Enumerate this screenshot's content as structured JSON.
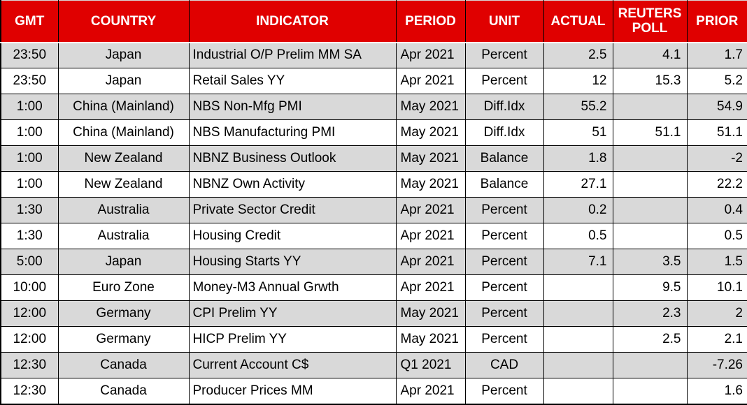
{
  "table": {
    "title": "economic-calendar",
    "colors": {
      "header_bg": "#E00000",
      "header_text": "#FFFFFF",
      "row_shaded": "#D9D9D9",
      "row_plain": "#FFFFFF",
      "border": "#000000"
    },
    "columns": [
      {
        "key": "gmt",
        "label": "GMT"
      },
      {
        "key": "country",
        "label": "COUNTRY"
      },
      {
        "key": "indicator",
        "label": "INDICATOR"
      },
      {
        "key": "period",
        "label": "PERIOD"
      },
      {
        "key": "unit",
        "label": "UNIT"
      },
      {
        "key": "actual",
        "label": "ACTUAL"
      },
      {
        "key": "reuters-poll",
        "label": "REUTERS POLL"
      },
      {
        "key": "prior",
        "label": "PRIOR"
      }
    ],
    "rows": [
      [
        "23:50",
        "Japan",
        "Industrial O/P Prelim MM SA",
        "Apr 2021",
        "Percent",
        "2.5",
        "4.1",
        "1.7"
      ],
      [
        "23:50",
        "Japan",
        "Retail Sales YY",
        "Apr 2021",
        "Percent",
        "12",
        "15.3",
        "5.2"
      ],
      [
        "1:00",
        "China (Mainland)",
        "NBS Non-Mfg PMI",
        "May 2021",
        "Diff.Idx",
        "55.2",
        "",
        "54.9"
      ],
      [
        "1:00",
        "China (Mainland)",
        "NBS Manufacturing PMI",
        "May 2021",
        "Diff.Idx",
        "51",
        "51.1",
        "51.1"
      ],
      [
        "1:00",
        "New Zealand",
        "NBNZ Business Outlook",
        "May 2021",
        "Balance",
        "1.8",
        "",
        "-2"
      ],
      [
        "1:00",
        "New Zealand",
        "NBNZ Own Activity",
        "May 2021",
        "Balance",
        "27.1",
        "",
        "22.2"
      ],
      [
        "1:30",
        "Australia",
        "Private Sector Credit",
        "Apr 2021",
        "Percent",
        "0.2",
        "",
        "0.4"
      ],
      [
        "1:30",
        "Australia",
        "Housing Credit",
        "Apr 2021",
        "Percent",
        "0.5",
        "",
        "0.5"
      ],
      [
        "5:00",
        "Japan",
        "Housing Starts YY",
        "Apr 2021",
        "Percent",
        "7.1",
        "3.5",
        "1.5"
      ],
      [
        "10:00",
        "Euro Zone",
        "Money-M3 Annual Grwth",
        "Apr 2021",
        "Percent",
        "",
        "9.5",
        "10.1"
      ],
      [
        "12:00",
        "Germany",
        "CPI Prelim YY",
        "May 2021",
        "Percent",
        "",
        "2.3",
        "2"
      ],
      [
        "12:00",
        "Germany",
        "HICP Prelim YY",
        "May 2021",
        "Percent",
        "",
        "2.5",
        "2.1"
      ],
      [
        "12:30",
        "Canada",
        "Current Account C$",
        "Q1 2021",
        "CAD",
        "",
        "",
        "-7.26"
      ],
      [
        "12:30",
        "Canada",
        "Producer Prices MM",
        "Apr 2021",
        "Percent",
        "",
        "",
        "1.6"
      ]
    ]
  }
}
